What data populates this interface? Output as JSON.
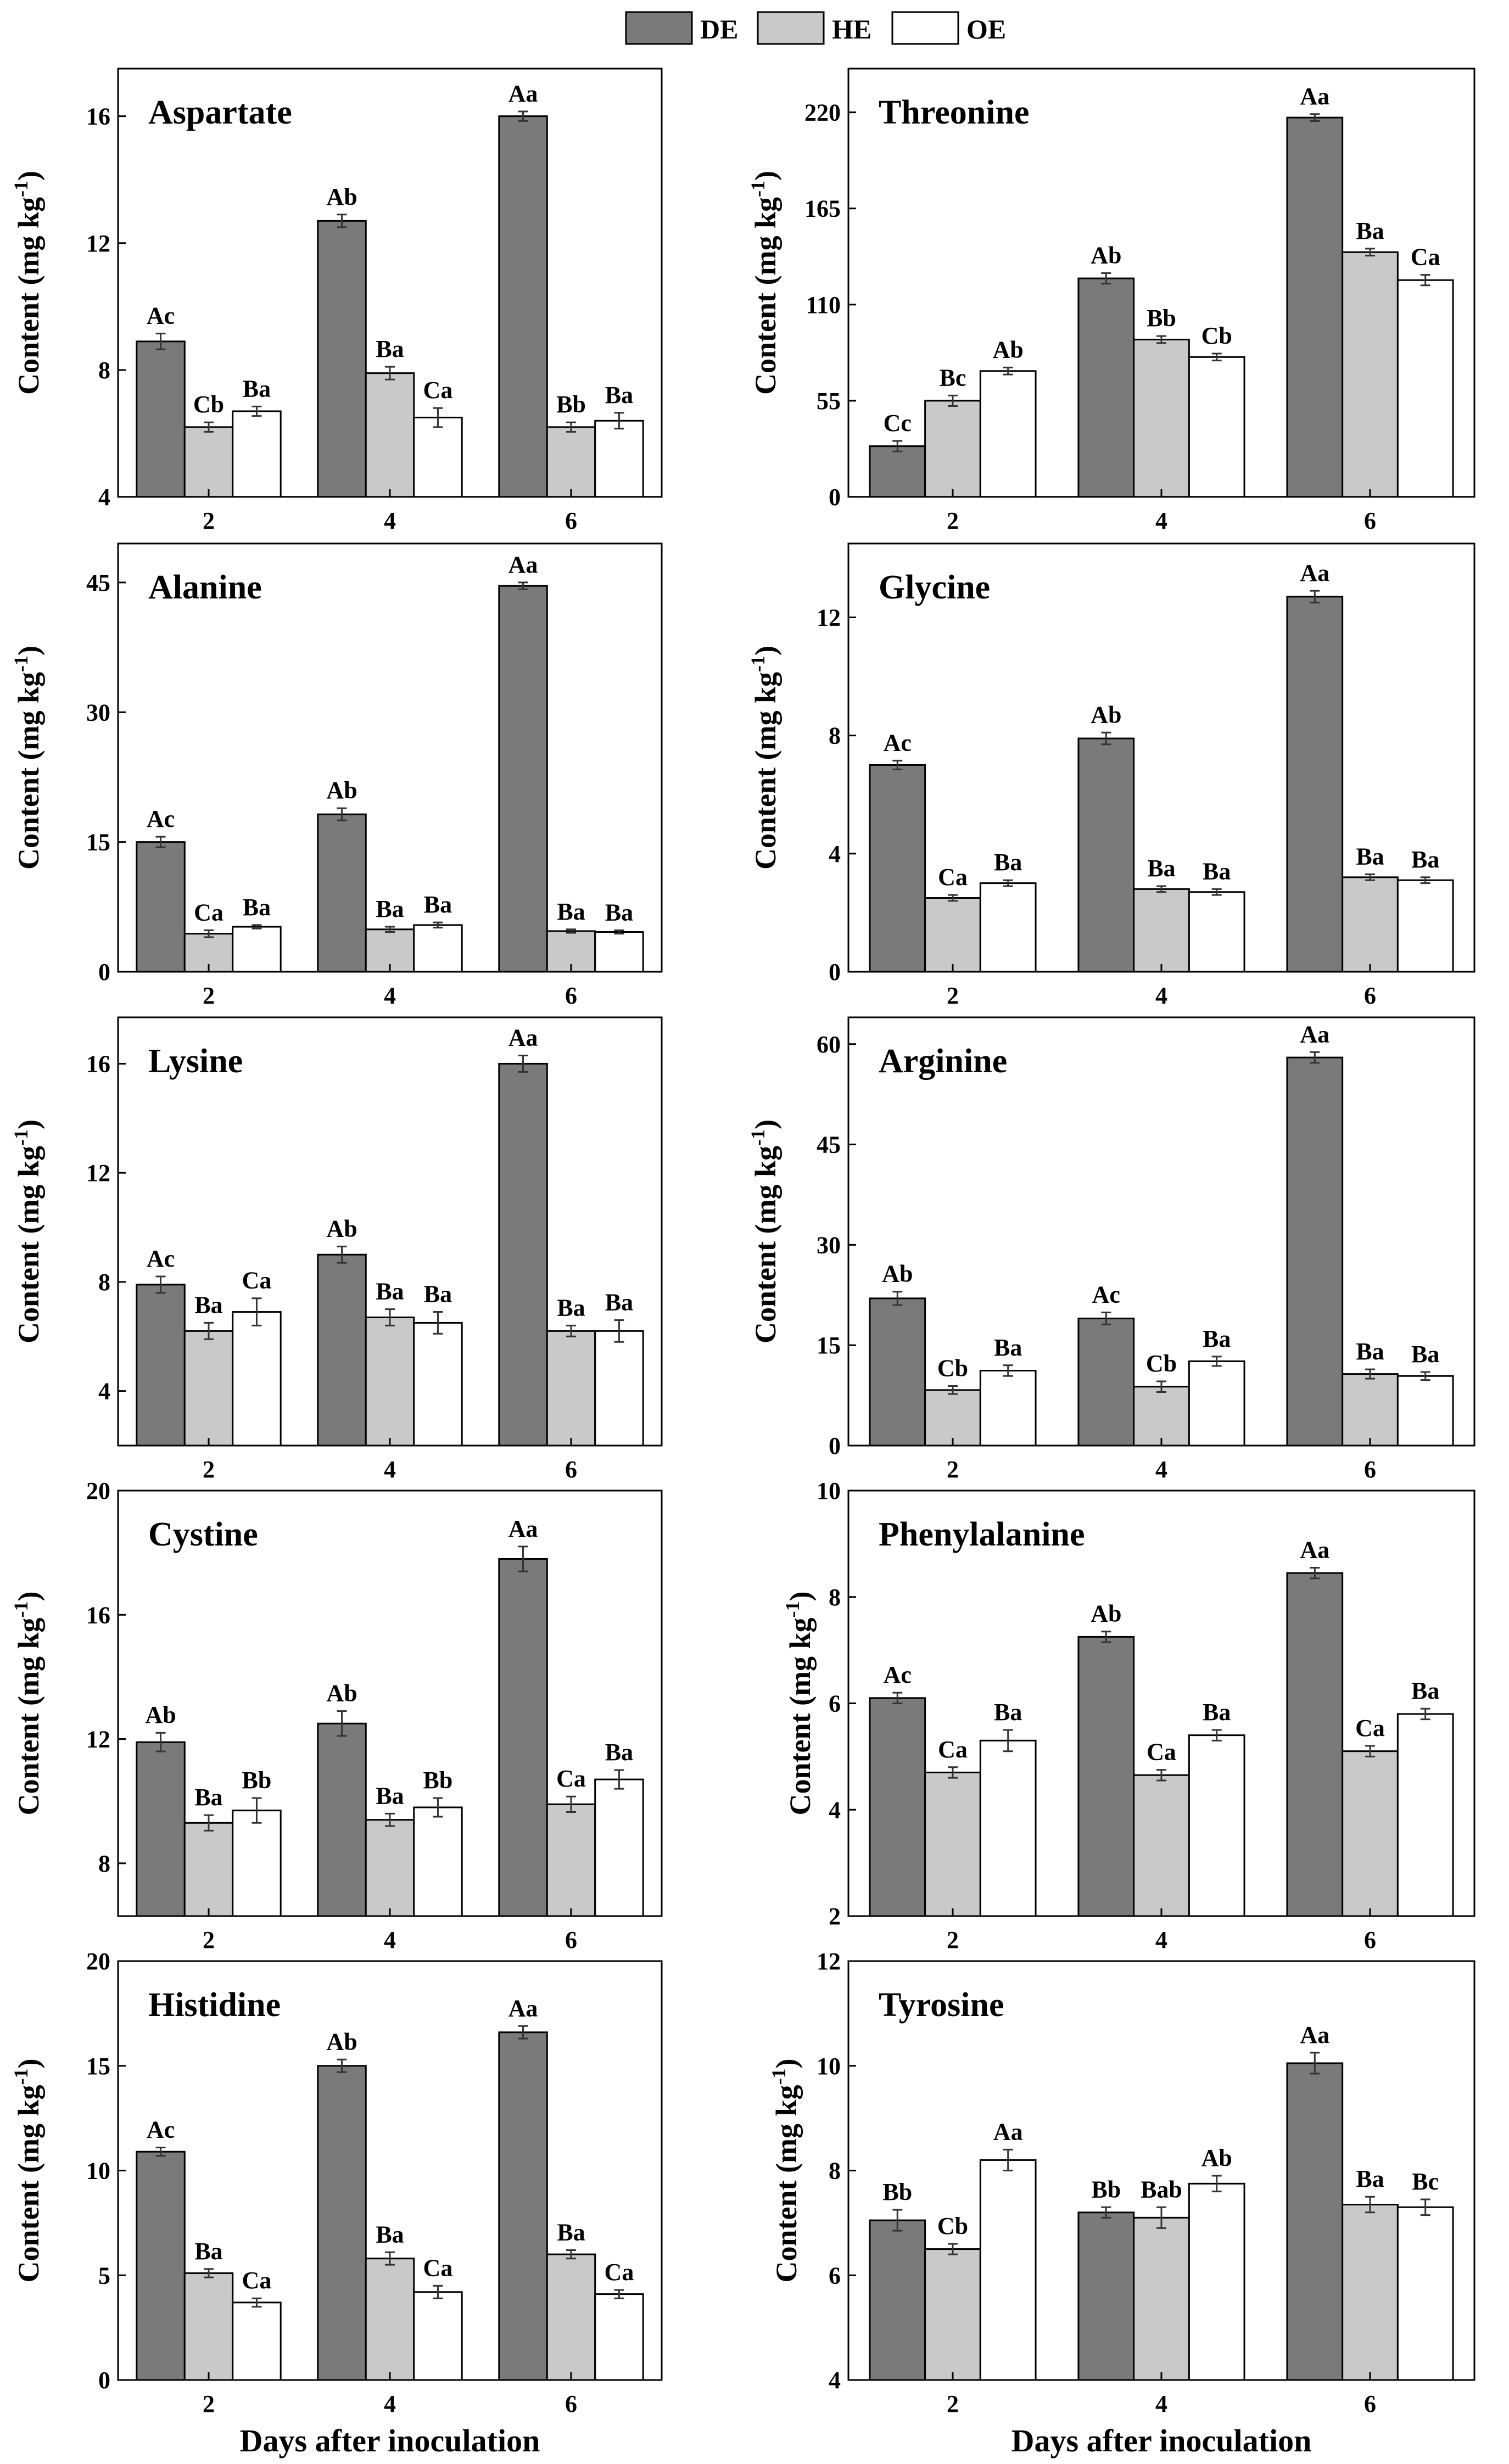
{
  "legend": {
    "entries": [
      {
        "key": "DE",
        "label": "DE",
        "color": "#7a7a7a"
      },
      {
        "key": "HE",
        "label": "HE",
        "color": "#c9c9c9"
      },
      {
        "key": "OE",
        "label": "OE",
        "color": "#ffffff"
      }
    ]
  },
  "common": {
    "ylabel": "Content (mg kg",
    "ylabel_sup": "-1",
    "ylabel_close": ")",
    "xlabel": "Days after inoculation"
  },
  "chart_data": [
    {
      "type": "bar",
      "title": "Aspartate",
      "categories": [
        "2",
        "4",
        "6"
      ],
      "ylim": [
        4,
        17.5
      ],
      "yticks": [
        4,
        8,
        12,
        16
      ],
      "series": [
        {
          "name": "DE",
          "values": [
            8.9,
            12.7,
            16.0
          ],
          "errors": [
            0.25,
            0.2,
            0.15
          ],
          "letters": [
            "Ac",
            "Ab",
            "Aa"
          ]
        },
        {
          "name": "HE",
          "values": [
            6.2,
            7.9,
            6.2
          ],
          "errors": [
            0.15,
            0.2,
            0.15
          ],
          "letters": [
            "Cb",
            "Ba",
            "Bb"
          ]
        },
        {
          "name": "OE",
          "values": [
            6.7,
            6.5,
            6.4
          ],
          "errors": [
            0.15,
            0.3,
            0.25
          ],
          "letters": [
            "Ba",
            "Ca",
            "Ba"
          ]
        }
      ]
    },
    {
      "type": "bar",
      "title": "Threonine",
      "categories": [
        "2",
        "4",
        "6"
      ],
      "ylim": [
        0,
        245
      ],
      "yticks": [
        0,
        55,
        110,
        165,
        220
      ],
      "series": [
        {
          "name": "DE",
          "values": [
            29,
            125,
            217
          ],
          "errors": [
            3,
            3,
            2
          ],
          "letters": [
            "Cc",
            "Ab",
            "Aa"
          ]
        },
        {
          "name": "HE",
          "values": [
            55,
            90,
            140
          ],
          "errors": [
            3,
            2,
            2
          ],
          "letters": [
            "Bc",
            "Bb",
            "Ba"
          ]
        },
        {
          "name": "OE",
          "values": [
            72,
            80,
            124
          ],
          "errors": [
            2,
            2,
            3
          ],
          "letters": [
            "Ab",
            "Cb",
            "Ca"
          ]
        }
      ]
    },
    {
      "type": "bar",
      "title": "Alanine",
      "categories": [
        "2",
        "4",
        "6"
      ],
      "ylim": [
        0,
        49.5
      ],
      "yticks": [
        0,
        15,
        30,
        45
      ],
      "series": [
        {
          "name": "DE",
          "values": [
            15.0,
            18.2,
            44.6
          ],
          "errors": [
            0.6,
            0.7,
            0.4
          ],
          "letters": [
            "Ac",
            "Ab",
            "Aa"
          ]
        },
        {
          "name": "HE",
          "values": [
            4.4,
            4.9,
            4.7
          ],
          "errors": [
            0.4,
            0.3,
            0.2
          ],
          "letters": [
            "Ca",
            "Ba",
            "Ba"
          ]
        },
        {
          "name": "OE",
          "values": [
            5.2,
            5.4,
            4.6
          ],
          "errors": [
            0.2,
            0.3,
            0.2
          ],
          "letters": [
            "Ba",
            "Ba",
            "Ba"
          ]
        }
      ]
    },
    {
      "type": "bar",
      "title": "Glycine",
      "categories": [
        "2",
        "4",
        "6"
      ],
      "ylim": [
        0,
        14.5
      ],
      "yticks": [
        0,
        4,
        8,
        12
      ],
      "series": [
        {
          "name": "DE",
          "values": [
            7.0,
            7.9,
            12.7
          ],
          "errors": [
            0.15,
            0.2,
            0.2
          ],
          "letters": [
            "Ac",
            "Ab",
            "Aa"
          ]
        },
        {
          "name": "HE",
          "values": [
            2.5,
            2.8,
            3.2
          ],
          "errors": [
            0.1,
            0.1,
            0.1
          ],
          "letters": [
            "Ca",
            "Ba",
            "Ba"
          ]
        },
        {
          "name": "OE",
          "values": [
            3.0,
            2.7,
            3.1
          ],
          "errors": [
            0.1,
            0.1,
            0.1
          ],
          "letters": [
            "Ba",
            "Ba",
            "Ba"
          ]
        }
      ]
    },
    {
      "type": "bar",
      "title": "Lysine",
      "categories": [
        "2",
        "4",
        "6"
      ],
      "ylim": [
        2,
        17.7
      ],
      "yticks": [
        4,
        8,
        12,
        16
      ],
      "series": [
        {
          "name": "DE",
          "values": [
            7.9,
            9.0,
            16.0
          ],
          "errors": [
            0.3,
            0.3,
            0.3
          ],
          "letters": [
            "Ac",
            "Ab",
            "Aa"
          ]
        },
        {
          "name": "HE",
          "values": [
            6.2,
            6.7,
            6.2
          ],
          "errors": [
            0.3,
            0.3,
            0.2
          ],
          "letters": [
            "Ba",
            "Ba",
            "Ba"
          ]
        },
        {
          "name": "OE",
          "values": [
            6.9,
            6.5,
            6.2
          ],
          "errors": [
            0.5,
            0.4,
            0.4
          ],
          "letters": [
            "Ca",
            "Ba",
            "Ba"
          ]
        }
      ]
    },
    {
      "type": "bar",
      "title": "Arginine",
      "categories": [
        "2",
        "4",
        "6"
      ],
      "ylim": [
        0,
        64
      ],
      "yticks": [
        0,
        15,
        30,
        45,
        60
      ],
      "series": [
        {
          "name": "DE",
          "values": [
            22.0,
            19.0,
            58.0
          ],
          "errors": [
            1.0,
            0.9,
            0.8
          ],
          "letters": [
            "Ab",
            "Ac",
            "Aa"
          ]
        },
        {
          "name": "HE",
          "values": [
            8.3,
            8.8,
            10.7
          ],
          "errors": [
            0.6,
            0.8,
            0.7
          ],
          "letters": [
            "Cb",
            "Cb",
            "Ba"
          ]
        },
        {
          "name": "OE",
          "values": [
            11.2,
            12.6,
            10.4
          ],
          "errors": [
            0.8,
            0.7,
            0.6
          ],
          "letters": [
            "Ba",
            "Ba",
            "Ba"
          ]
        }
      ]
    },
    {
      "type": "bar",
      "title": "Cystine",
      "categories": [
        "2",
        "4",
        "6"
      ],
      "ylim": [
        6.3,
        20
      ],
      "yticks": [
        8,
        12,
        16,
        20
      ],
      "series": [
        {
          "name": "DE",
          "values": [
            11.9,
            12.5,
            17.8
          ],
          "errors": [
            0.3,
            0.4,
            0.4
          ],
          "letters": [
            "Ab",
            "Ab",
            "Aa"
          ]
        },
        {
          "name": "HE",
          "values": [
            9.3,
            9.4,
            9.9
          ],
          "errors": [
            0.25,
            0.2,
            0.25
          ],
          "letters": [
            "Ba",
            "Ba",
            "Ca"
          ]
        },
        {
          "name": "OE",
          "values": [
            9.7,
            9.8,
            10.7
          ],
          "errors": [
            0.4,
            0.3,
            0.3
          ],
          "letters": [
            "Bb",
            "Bb",
            "Ba"
          ]
        }
      ]
    },
    {
      "type": "bar",
      "title": "Phenylalanine",
      "categories": [
        "2",
        "4",
        "6"
      ],
      "ylim": [
        2,
        10
      ],
      "yticks": [
        2,
        4,
        6,
        8,
        10
      ],
      "series": [
        {
          "name": "DE",
          "values": [
            6.1,
            7.25,
            8.45
          ],
          "errors": [
            0.1,
            0.1,
            0.1
          ],
          "letters": [
            "Ac",
            "Ab",
            "Aa"
          ]
        },
        {
          "name": "HE",
          "values": [
            4.7,
            4.65,
            5.1
          ],
          "errors": [
            0.1,
            0.1,
            0.1
          ],
          "letters": [
            "Ca",
            "Ca",
            "Ca"
          ]
        },
        {
          "name": "OE",
          "values": [
            5.3,
            5.4,
            5.8
          ],
          "errors": [
            0.2,
            0.1,
            0.1
          ],
          "letters": [
            "Ba",
            "Ba",
            "Ba"
          ]
        }
      ]
    },
    {
      "type": "bar",
      "title": "Histidine",
      "categories": [
        "2",
        "4",
        "6"
      ],
      "ylim": [
        0,
        20
      ],
      "yticks": [
        0,
        5,
        10,
        15,
        20
      ],
      "series": [
        {
          "name": "DE",
          "values": [
            10.9,
            15.0,
            16.6
          ],
          "errors": [
            0.2,
            0.3,
            0.3
          ],
          "letters": [
            "Ac",
            "Ab",
            "Aa"
          ]
        },
        {
          "name": "HE",
          "values": [
            5.1,
            5.8,
            6.0
          ],
          "errors": [
            0.2,
            0.3,
            0.2
          ],
          "letters": [
            "Ba",
            "Ba",
            "Ba"
          ]
        },
        {
          "name": "OE",
          "values": [
            3.7,
            4.2,
            4.1
          ],
          "errors": [
            0.2,
            0.3,
            0.2
          ],
          "letters": [
            "Ca",
            "Ca",
            "Ca"
          ]
        }
      ]
    },
    {
      "type": "bar",
      "title": "Tyrosine",
      "categories": [
        "2",
        "4",
        "6"
      ],
      "ylim": [
        4,
        12
      ],
      "yticks": [
        4,
        6,
        8,
        10,
        12
      ],
      "series": [
        {
          "name": "DE",
          "values": [
            7.05,
            7.2,
            10.05
          ],
          "errors": [
            0.2,
            0.1,
            0.2
          ],
          "letters": [
            "Bb",
            "Bb",
            "Aa"
          ]
        },
        {
          "name": "HE",
          "values": [
            6.5,
            7.1,
            7.35
          ],
          "errors": [
            0.1,
            0.2,
            0.15
          ],
          "letters": [
            "Cb",
            "Bab",
            "Ba"
          ]
        },
        {
          "name": "OE",
          "values": [
            8.2,
            7.75,
            7.3
          ],
          "errors": [
            0.2,
            0.15,
            0.15
          ],
          "letters": [
            "Aa",
            "Ab",
            "Bc"
          ]
        }
      ]
    }
  ]
}
